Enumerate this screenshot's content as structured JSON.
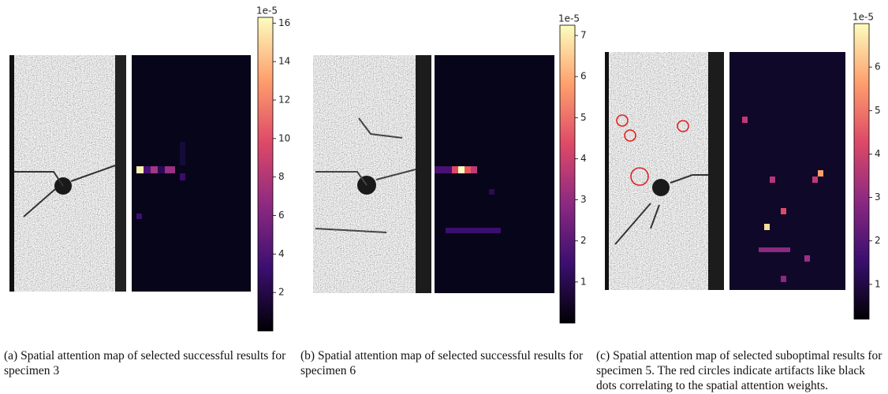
{
  "panels": [
    {
      "colorbar": {
        "offset_label": "1e-5",
        "lim": [
          0,
          16.3
        ],
        "ticks": [
          2,
          4,
          6,
          8,
          10,
          12,
          14,
          16
        ]
      },
      "caption": "(a) Spatial attention map of selected successful results for specimen 3"
    },
    {
      "colorbar": {
        "offset_label": "1e-5",
        "lim": [
          0,
          7.25
        ],
        "ticks": [
          1,
          2,
          3,
          4,
          5,
          6,
          7
        ]
      },
      "caption": "(b) Spatial attention map of selected successful results for specimen 6"
    },
    {
      "colorbar": {
        "offset_label": "1e-5",
        "lim": [
          0.2,
          7.0
        ],
        "ticks": [
          1,
          2,
          3,
          4,
          5,
          6
        ]
      },
      "caption": "(c) Spatial attention map of selected suboptimal results for specimen 5. The red circles indicate artifacts like black dots correlating to the spatial attention weights."
    }
  ]
}
